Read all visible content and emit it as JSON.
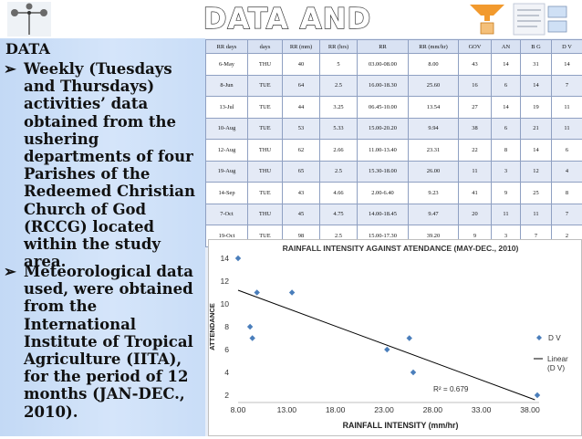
{
  "slide": {
    "title": "DATA AND ANALYSIS",
    "heading": "DATA",
    "bullets": [
      "Weekly (Tuesdays\nand Thursdays)\nactivities’ data\nobtained from the\nushering\ndepartments of four\nParishes of the\nRedeemed Christian\nChurch of God\n(RCCG) located\nwithin the study area.",
      "Meteorological data\nused, were obtained\nfrom the\nInternational\nInstitute of Tropical\nAgriculture (IITA),\nfor the period of 12\nmonths (JAN-DEC.,\n2010)."
    ],
    "bullet_glyph": "➢"
  },
  "table": {
    "headers": [
      "RR days",
      "days",
      "RR (mm)",
      "RR (hrs)",
      "RR",
      "RR (mm/hr)",
      "GOV",
      "AN",
      "B G",
      "D V"
    ],
    "rows": [
      [
        "6-May",
        "THU",
        "40",
        "5",
        "03.00-08.00",
        "8.00",
        "43",
        "14",
        "31",
        "14"
      ],
      [
        "8-Jun",
        "TUE",
        "64",
        "2.5",
        "16.00-18.30",
        "25.60",
        "16",
        "6",
        "14",
        "7"
      ],
      [
        "13-Jul",
        "TUE",
        "44",
        "3.25",
        "06.45-10.00",
        "13.54",
        "27",
        "14",
        "19",
        "11"
      ],
      [
        "10-Aug",
        "TUE",
        "53",
        "5.33",
        "15.00-20.20",
        "9.94",
        "38",
        "6",
        "21",
        "11"
      ],
      [
        "12-Aug",
        "THU",
        "62",
        "2.66",
        "11.00-13.40",
        "23.31",
        "22",
        "8",
        "14",
        "6"
      ],
      [
        "19-Aug",
        "THU",
        "65",
        "2.5",
        "15.30-18.00",
        "26.00",
        "11",
        "3",
        "12",
        "4"
      ],
      [
        "14-Sep",
        "TUE",
        "43",
        "4.66",
        "2.00-6.40",
        "9.23",
        "41",
        "9",
        "25",
        "8"
      ],
      [
        "7-Oct",
        "THU",
        "45",
        "4.75",
        "14.00-18.45",
        "9.47",
        "20",
        "11",
        "11",
        "7"
      ],
      [
        "19-Oct",
        "TUE",
        "98",
        "2.5",
        "15.00-17.30",
        "39.20",
        "9",
        "3",
        "7",
        "2"
      ]
    ]
  },
  "chart_data": {
    "type": "scatter",
    "title": "RAINFALL INTENSITY AGAINST ATENDANCE (MAY-DEC., 2010)",
    "xlabel": "RAINFALL INTENSITY  (mm/hr)",
    "ylabel": "ATTENDANCE",
    "xlim": [
      8.0,
      38.0
    ],
    "ylim": [
      2,
      14
    ],
    "xticks": [
      "8.00",
      "13.00",
      "18.00",
      "23.00",
      "28.00",
      "33.00",
      "38.00"
    ],
    "yticks": [
      "2",
      "4",
      "6",
      "8",
      "10",
      "12",
      "14"
    ],
    "series": [
      {
        "name": "D V",
        "color": "#4a7ebb",
        "points": [
          [
            8.0,
            14
          ],
          [
            25.6,
            7
          ],
          [
            13.54,
            11
          ],
          [
            9.94,
            11
          ],
          [
            23.31,
            6
          ],
          [
            26.0,
            4
          ],
          [
            9.23,
            8
          ],
          [
            9.47,
            7
          ],
          [
            39.2,
            2
          ]
        ]
      }
    ],
    "trendline": {
      "name": "Linear\n(D V)",
      "from": [
        8.0,
        11.2
      ],
      "to": [
        38.5,
        1.6
      ],
      "color": "#000000"
    },
    "r2_label": "R² = 0.679",
    "legend_position": "right",
    "grid": false
  }
}
